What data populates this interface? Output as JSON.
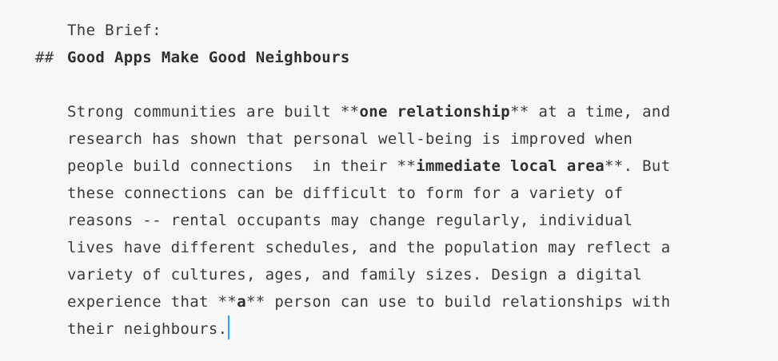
{
  "document": {
    "label_line": "The Brief:",
    "heading_marker": "##",
    "heading": "Good Apps Make Good Neighbours",
    "paragraph": [
      [
        {
          "t": "Strong communities are built "
        },
        {
          "t": "**"
        },
        {
          "t": "one relationship",
          "b": true
        },
        {
          "t": "**"
        },
        {
          "t": " at a time, and"
        }
      ],
      [
        {
          "t": "research has shown that personal well-being is improved when"
        }
      ],
      [
        {
          "t": "people build connections  in their "
        },
        {
          "t": "**"
        },
        {
          "t": "immediate local area",
          "b": true
        },
        {
          "t": "**"
        },
        {
          "t": ". But"
        }
      ],
      [
        {
          "t": "these connections can be difficult to form for a variety of"
        }
      ],
      [
        {
          "t": "reasons -- rental occupants may change regularly, individual"
        }
      ],
      [
        {
          "t": "lives have different schedules, and the population may reflect a"
        }
      ],
      [
        {
          "t": "variety of cultures, ages, and family sizes. Design a digital"
        }
      ],
      [
        {
          "t": "experience that "
        },
        {
          "t": "**"
        },
        {
          "t": "a",
          "b": true
        },
        {
          "t": "**"
        },
        {
          "t": " person can use to build relationships with"
        }
      ],
      [
        {
          "t": "their neighbours."
        }
      ]
    ]
  },
  "colors": {
    "background": "#f7f7f7",
    "text": "#3a3a3a",
    "caret": "#2aa3ff"
  }
}
